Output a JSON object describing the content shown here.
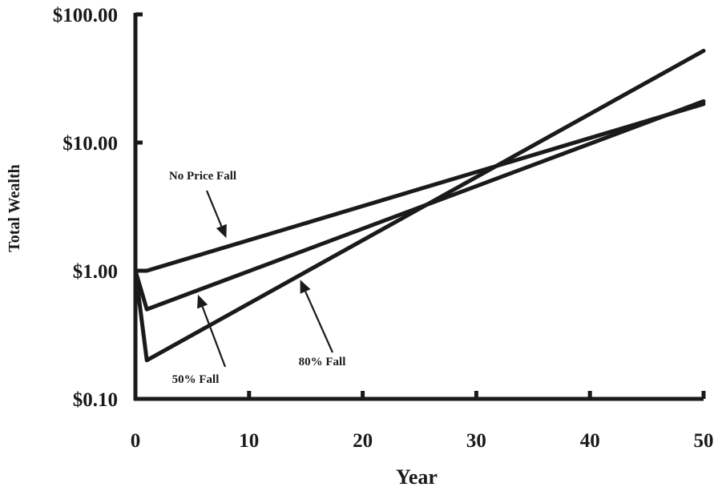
{
  "chart_data": {
    "type": "line",
    "xlabel": "Year",
    "ylabel": "Total Wealth",
    "xlim": [
      0,
      50
    ],
    "ylim": [
      0.1,
      100
    ],
    "yscale": "log",
    "x_ticks": [
      "0",
      "10",
      "20",
      "30",
      "40",
      "50"
    ],
    "y_ticks": [
      "$0.10",
      "$1.00",
      "$10.00",
      "$100.00"
    ],
    "grid": false,
    "legend": "none",
    "color": "#1a1a1a",
    "series": [
      {
        "x": [
          0,
          1,
          50
        ],
        "y": [
          1.0,
          1.0,
          20.0
        ]
      },
      {
        "x": [
          0,
          1,
          50
        ],
        "y": [
          1.0,
          0.5,
          21.0
        ]
      },
      {
        "x": [
          0,
          1,
          50
        ],
        "y": [
          1.0,
          0.2,
          52.0
        ]
      }
    ],
    "annotations": [
      {
        "text": "No Price Fall",
        "x": 8,
        "y": 1.8
      },
      {
        "text": "50% Fall",
        "x": 5.5,
        "y": 0.65
      },
      {
        "text": "80% Fall",
        "x": 14.5,
        "y": 0.85
      }
    ]
  }
}
